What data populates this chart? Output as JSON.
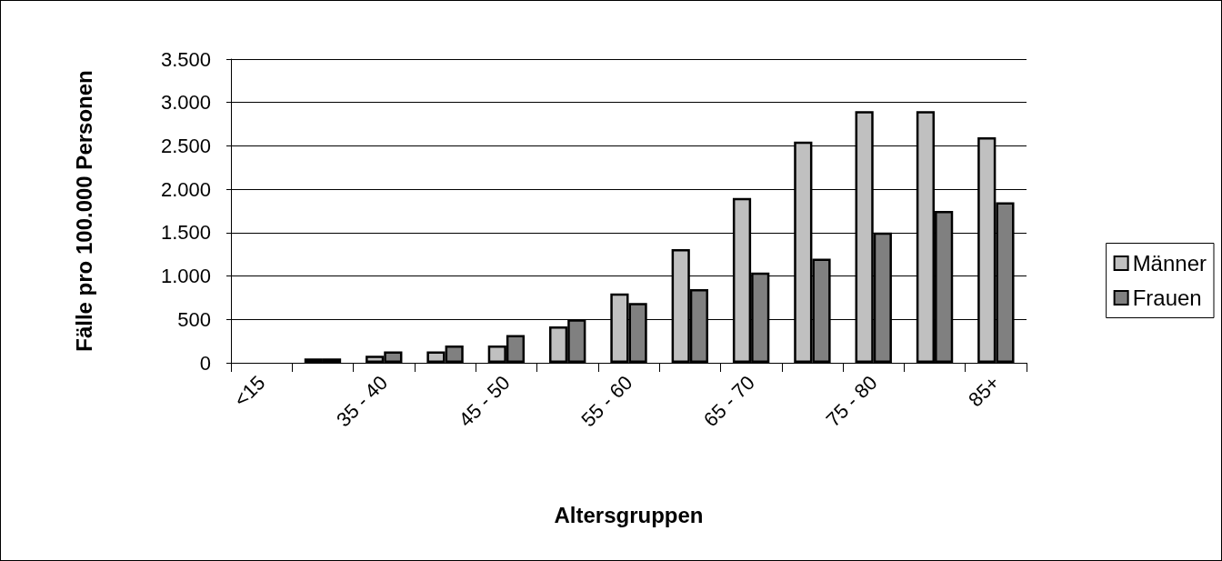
{
  "chart_data": {
    "type": "bar",
    "xlabel": "Altersgruppen",
    "ylabel": "Fälle pro 100.000 Personen",
    "categories": [
      "<15",
      null,
      "35 - 40",
      null,
      "45 - 50",
      null,
      "55 - 60",
      null,
      "65 - 70",
      null,
      "75 - 80",
      null,
      "85+"
    ],
    "series": [
      {
        "name": "Männer",
        "color": "#c0c0c0",
        "values": [
          0,
          50,
          80,
          130,
          200,
          420,
          800,
          1310,
          1900,
          2550,
          2900,
          2900,
          2600
        ]
      },
      {
        "name": "Frauen",
        "color": "#808080",
        "values": [
          0,
          50,
          130,
          200,
          320,
          500,
          690,
          850,
          1040,
          1200,
          1500,
          1750,
          1850
        ]
      }
    ],
    "ylim": [
      0,
      3500
    ],
    "yticks": [
      {
        "value": 0,
        "label": "0"
      },
      {
        "value": 500,
        "label": "500"
      },
      {
        "value": 1000,
        "label": "1.000"
      },
      {
        "value": 1500,
        "label": "1.500"
      },
      {
        "value": 2000,
        "label": "2.000"
      },
      {
        "value": 2500,
        "label": "2.500"
      },
      {
        "value": 3000,
        "label": "3.000"
      },
      {
        "value": 3500,
        "label": "3.500"
      }
    ],
    "grid": "y",
    "legend": "right"
  }
}
